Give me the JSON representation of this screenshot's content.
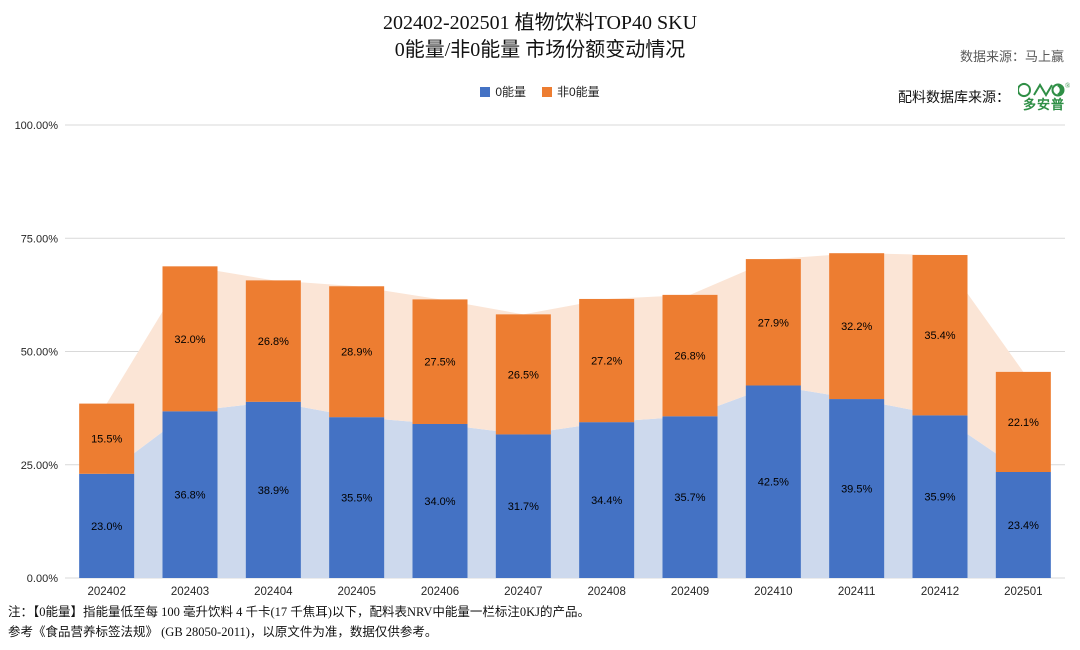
{
  "header": {
    "title_line1": "202402-202501 植物饮料TOP40 SKU",
    "title_line2": "0能量/非0能量 市场份额变动情况",
    "data_source": "数据来源：马上赢",
    "ingredient_source_label": "配料数据库来源：",
    "logo_text": "多安普",
    "logo_reg": "®",
    "logo_color": "#2f8f46"
  },
  "legend": [
    {
      "label": "0能量",
      "color": "#4472c4"
    },
    {
      "label": "非0能量",
      "color": "#ed7d31"
    }
  ],
  "chart_data": {
    "type": "bar",
    "stacked": true,
    "title": "202402-202501 植物饮料TOP40 SKU 0能量/非0能量 市场份额变动情况",
    "categories": [
      "202402",
      "202403",
      "202404",
      "202405",
      "202406",
      "202407",
      "202408",
      "202409",
      "202410",
      "202411",
      "202412",
      "202501"
    ],
    "series": [
      {
        "name": "0能量",
        "color": "#4472c4",
        "area_color": "#cdd9ed",
        "values": [
          23.0,
          36.8,
          38.9,
          35.5,
          34.0,
          31.7,
          34.4,
          35.7,
          42.5,
          39.5,
          35.9,
          23.4
        ]
      },
      {
        "name": "非0能量",
        "color": "#ed7d31",
        "area_color": "#fbe5d6",
        "values": [
          15.5,
          32.0,
          26.8,
          28.9,
          27.5,
          26.5,
          27.2,
          26.8,
          27.9,
          32.2,
          35.4,
          22.1
        ]
      }
    ],
    "xlabel": "",
    "ylabel": "",
    "ylim": [
      0,
      100
    ],
    "yticks": [
      "0.00%",
      "25.00%",
      "50.00%",
      "75.00%",
      "100.00%"
    ],
    "grid": true,
    "grid_color": "#d9d9d9",
    "legend_position": "top",
    "label_format": "one-decimal-percent"
  },
  "footnotes": [
    "注：【0能量】指能量低至每 100 毫升饮料 4 千卡(17 千焦耳)以下，配料表NRV中能量一栏标注0KJ的产品。",
    "参考《食品营养标签法规》 (GB 28050-2011)，以原文件为准，数据仅供参考。"
  ]
}
